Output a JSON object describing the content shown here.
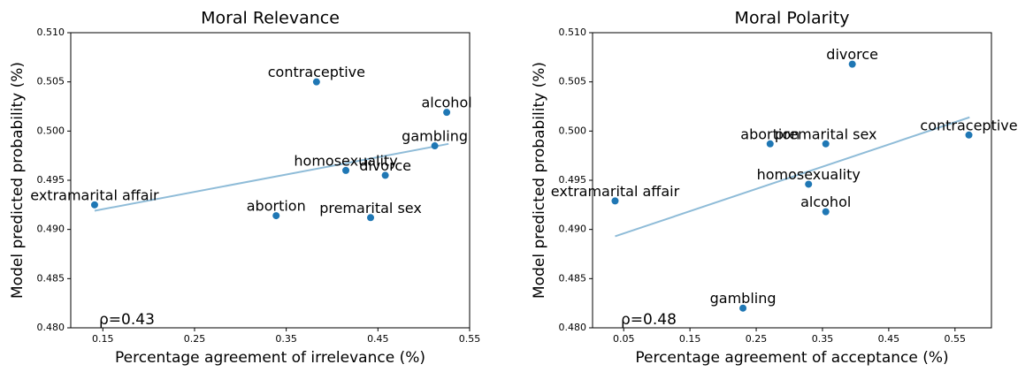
{
  "chart_data": [
    {
      "type": "scatter",
      "title": "Moral Relevance",
      "xlabel": "Percentage agreement of irrelevance (%)",
      "ylabel": "Model predicted probability (%)",
      "annotation": "ρ=0.43",
      "color": "#1f77b4",
      "labels": [
        "extramarital affair",
        "abortion",
        "contraceptive",
        "homosexuality",
        "premarital sex",
        "divorce",
        "gambling",
        "alcohol"
      ],
      "x": [
        0.141,
        0.339,
        0.383,
        0.415,
        0.442,
        0.458,
        0.512,
        0.525
      ],
      "values": [
        0.4925,
        0.4914,
        0.505,
        0.496,
        0.4912,
        0.4955,
        0.4985,
        0.5019
      ],
      "fit": {
        "x": [
          0.141,
          0.527
        ],
        "values": [
          0.4919,
          0.4987
        ],
        "color": "#8fbcd8"
      },
      "xlim": [
        0.115,
        0.55
      ],
      "ylim": [
        0.48,
        0.51
      ],
      "xticks": [
        0.15,
        0.25,
        0.35,
        0.45,
        0.55
      ],
      "yticks": [
        {
          "value": 0.48,
          "label": "0.480"
        },
        0.485,
        {
          "value": 0.49,
          "label": "0.490"
        },
        0.495,
        {
          "value": 0.5,
          "label": "0.500"
        },
        0.505,
        {
          "value": 0.51,
          "label": "0.510"
        }
      ]
    },
    {
      "type": "scatter",
      "title": "Moral Polarity",
      "xlabel": "Percentage agreement of acceptance (%)",
      "ylabel": "Model predicted probability (%)",
      "annotation": "ρ=0.48",
      "color": "#1f77b4",
      "labels": [
        "extramarital affair",
        "gambling",
        "abortion",
        "homosexuality",
        "premarital sex",
        "alcohol",
        "divorce",
        "contraceptive"
      ],
      "x": [
        0.037,
        0.23,
        0.271,
        0.329,
        0.355,
        0.355,
        0.395,
        0.571
      ],
      "values": [
        0.4929,
        0.482,
        0.4987,
        0.4946,
        0.4987,
        0.4918,
        0.5068,
        0.4996
      ],
      "fit": {
        "x": [
          0.037,
          0.572
        ],
        "values": [
          0.4893,
          0.5014
        ],
        "color": "#8fbcd8"
      },
      "xlim": [
        0.003,
        0.605
      ],
      "ylim": [
        0.48,
        0.51
      ],
      "xticks": [
        0.05,
        0.15,
        0.25,
        0.35,
        0.45,
        0.55
      ],
      "yticks": [
        {
          "value": 0.48,
          "label": "0.480"
        },
        0.485,
        {
          "value": 0.49,
          "label": "0.490"
        },
        0.495,
        {
          "value": 0.5,
          "label": "0.500"
        },
        0.505,
        {
          "value": 0.51,
          "label": "0.510"
        }
      ]
    }
  ]
}
